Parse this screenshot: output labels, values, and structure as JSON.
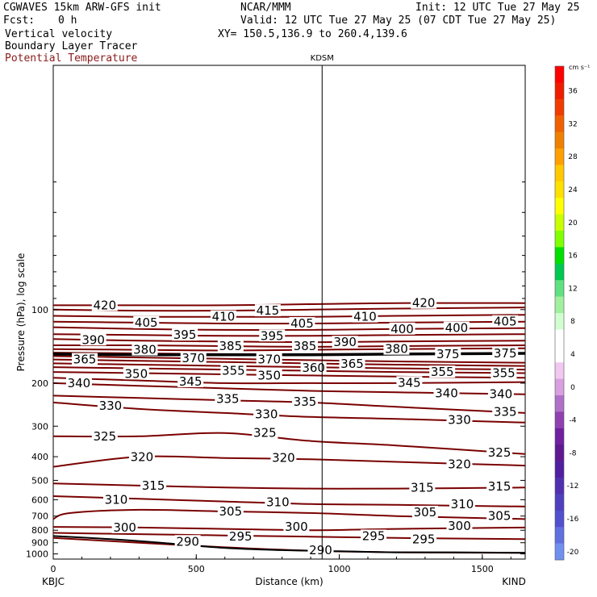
{
  "header": {
    "model": "CGWAVES 15km ARW-GFS init",
    "fcst_label": "Fcst:",
    "fcst_value": "0 h",
    "center": "NCAR/MMM",
    "init": "Init: 12 UTC Tue 27 May 25",
    "valid": "Valid: 12 UTC Tue 27 May 25 (07 CDT Tue 27 May 25)",
    "xy": "XY= 150.5,136.9 to 260.4,139.6",
    "field1": "Vertical velocity",
    "field2": "Boundary Layer Tracer",
    "field3": "Potential Temperature"
  },
  "colors": {
    "contour": "#7a0000",
    "field3_text": "#8b1a1a",
    "tropopause": "#000000"
  },
  "chart_data": {
    "type": "line",
    "xlabel": "Distance (km)",
    "ylabel": "Pressure (hPa), log scale",
    "xlim": [
      0,
      1650
    ],
    "ylim": [
      1050,
      10
    ],
    "x_ticks": [
      "0",
      "500",
      "1000",
      "1500"
    ],
    "y_ticks": [
      "100",
      "200",
      "300",
      "400",
      "500",
      "600",
      "700",
      "800",
      "900",
      "1000"
    ],
    "station_left": "KBJC",
    "station_right": "KIND",
    "station_mid": "KDSM",
    "station_mid_x": 940,
    "colorbar": {
      "unit": "cm s⁻¹",
      "labels": [
        "36",
        "32",
        "28",
        "24",
        "20",
        "16",
        "12",
        "8",
        "4",
        "0",
        "-4",
        "-8",
        "-12",
        "-16",
        "-20"
      ],
      "colors": [
        "#ff0000",
        "#f01c00",
        "#f03c00",
        "#f06000",
        "#f08000",
        "#ffa000",
        "#ffc800",
        "#ffe000",
        "#ffff00",
        "#c8ff00",
        "#80ff00",
        "#00e000",
        "#00c850",
        "#60e080",
        "#a0f0a0",
        "#d0ffd0",
        "#ffffff",
        "#ffffff",
        "#f0c8f0",
        "#d8a0e0",
        "#b070c8",
        "#9040b0",
        "#7020a0",
        "#601890",
        "#5020a0",
        "#5030b0",
        "#5040c0",
        "#5050d0",
        "#6070e0",
        "#7090f0"
      ]
    },
    "series": [
      {
        "theta": 290,
        "x": [
          0,
          300,
          600,
          900,
          1200,
          1650
        ],
        "p": [
          860,
          900,
          940,
          970,
          985,
          990
        ]
      },
      {
        "theta": 295,
        "x": [
          0,
          300,
          600,
          900,
          1200,
          1650
        ],
        "p": [
          820,
          830,
          840,
          850,
          860,
          870
        ]
      },
      {
        "theta": 300,
        "x": [
          0,
          300,
          600,
          900,
          1200,
          1650
        ],
        "p": [
          775,
          780,
          790,
          800,
          790,
          780
        ]
      },
      {
        "theta": 305,
        "x": [
          0,
          60,
          300,
          600,
          900,
          1200,
          1650
        ],
        "p": [
          720,
          680,
          660,
          670,
          680,
          700,
          720
        ]
      },
      {
        "theta": 310,
        "x": [
          0,
          300,
          600,
          900,
          1200,
          1650
        ],
        "p": [
          580,
          595,
          610,
          625,
          630,
          640
        ]
      },
      {
        "theta": 315,
        "x": [
          0,
          300,
          600,
          900,
          1200,
          1650
        ],
        "p": [
          515,
          525,
          535,
          540,
          540,
          535
        ]
      },
      {
        "theta": 320,
        "x": [
          0,
          300,
          600,
          900,
          1200,
          1650
        ],
        "p": [
          440,
          400,
          405,
          410,
          420,
          435
        ]
      },
      {
        "theta": 325,
        "x": [
          0,
          300,
          600,
          900,
          1200,
          1650
        ],
        "p": [
          330,
          330,
          320,
          345,
          360,
          390
        ]
      },
      {
        "theta": 330,
        "x": [
          0,
          300,
          600,
          900,
          1200,
          1650
        ],
        "p": [
          240,
          255,
          265,
          275,
          280,
          290
        ]
      },
      {
        "theta": 335,
        "x": [
          0,
          300,
          600,
          900,
          1200,
          1650
        ],
        "p": [
          225,
          230,
          235,
          240,
          250,
          265
        ]
      },
      {
        "theta": 340,
        "x": [
          0,
          300,
          600,
          900,
          1200,
          1650
        ],
        "p": [
          200,
          205,
          210,
          215,
          218,
          222
        ]
      },
      {
        "theta": 345,
        "x": [
          0,
          300,
          600,
          900,
          1200,
          1650
        ],
        "p": [
          190,
          195,
          200,
          200,
          200,
          198
        ]
      },
      {
        "theta": 350,
        "x": [
          0,
          300,
          600,
          900,
          1200,
          1650
        ],
        "p": [
          180,
          182,
          184,
          186,
          188,
          190
        ]
      },
      {
        "theta": 355,
        "x": [
          0,
          300,
          600,
          900,
          1200,
          1650
        ],
        "p": [
          172,
          174,
          176,
          178,
          180,
          182
        ]
      },
      {
        "theta": 360,
        "x": [
          0,
          300,
          600,
          900,
          1200,
          1650
        ],
        "p": [
          166,
          168,
          170,
          172,
          174,
          176
        ]
      },
      {
        "theta": 365,
        "x": [
          0,
          300,
          600,
          900,
          1200,
          1650
        ],
        "p": [
          160,
          162,
          164,
          166,
          168,
          170
        ]
      },
      {
        "theta": 370,
        "x": [
          0,
          300,
          600,
          900,
          1200,
          1650
        ],
        "p": [
          155,
          157,
          159,
          161,
          163,
          165
        ]
      },
      {
        "theta": 375,
        "x": [
          0,
          300,
          600,
          900,
          1200,
          1650
        ],
        "p": [
          150,
          151,
          152,
          152,
          152,
          151
        ]
      },
      {
        "theta": 380,
        "x": [
          0,
          300,
          600,
          900,
          1200,
          1650
        ],
        "p": [
          145,
          146,
          147,
          146,
          145,
          144
        ]
      },
      {
        "theta": 385,
        "x": [
          0,
          300,
          600,
          900,
          1200,
          1650
        ],
        "p": [
          140,
          140,
          141,
          142,
          141,
          140
        ]
      },
      {
        "theta": 390,
        "x": [
          0,
          300,
          600,
          900,
          1200,
          1650
        ],
        "p": [
          132,
          134,
          135,
          136,
          135,
          134
        ]
      },
      {
        "theta": 395,
        "x": [
          0,
          300,
          600,
          900,
          1200,
          1650
        ],
        "p": [
          126,
          127,
          128,
          128,
          127,
          126
        ]
      },
      {
        "theta": 400,
        "x": [
          0,
          300,
          600,
          900,
          1200,
          1650
        ],
        "p": [
          118,
          120,
          121,
          121,
          120,
          119
        ]
      },
      {
        "theta": 405,
        "x": [
          0,
          300,
          600,
          900,
          1200,
          1650
        ],
        "p": [
          112,
          113,
          114,
          114,
          113,
          112
        ]
      },
      {
        "theta": 410,
        "x": [
          0,
          300,
          600,
          900,
          1200,
          1650
        ],
        "p": [
          106,
          107,
          107,
          107,
          106,
          105
        ]
      },
      {
        "theta": 415,
        "x": [
          0,
          300,
          600,
          900,
          1200,
          1650
        ],
        "p": [
          100,
          101,
          101,
          100,
          99,
          98
        ]
      },
      {
        "theta": 420,
        "x": [
          0,
          300,
          600,
          900,
          1200,
          1650
        ],
        "p": [
          96,
          96,
          96,
          95,
          94,
          94
        ]
      }
    ],
    "labels": [
      {
        "text": "290",
        "x": 470,
        "p": 890
      },
      {
        "text": "290",
        "x": 935,
        "p": 965
      },
      {
        "text": "295",
        "x": 655,
        "p": 850
      },
      {
        "text": "295",
        "x": 1120,
        "p": 845
      },
      {
        "text": "295",
        "x": 1295,
        "p": 870
      },
      {
        "text": "300",
        "x": 250,
        "p": 780
      },
      {
        "text": "300",
        "x": 850,
        "p": 775
      },
      {
        "text": "300",
        "x": 1420,
        "p": 770
      },
      {
        "text": "305",
        "x": 620,
        "p": 670
      },
      {
        "text": "305",
        "x": 1300,
        "p": 675
      },
      {
        "text": "305",
        "x": 1560,
        "p": 700
      },
      {
        "text": "310",
        "x": 220,
        "p": 600
      },
      {
        "text": "310",
        "x": 785,
        "p": 615
      },
      {
        "text": "310",
        "x": 1430,
        "p": 625
      },
      {
        "text": "315",
        "x": 350,
        "p": 525
      },
      {
        "text": "315",
        "x": 1290,
        "p": 535
      },
      {
        "text": "315",
        "x": 1560,
        "p": 530
      },
      {
        "text": "320",
        "x": 310,
        "p": 402
      },
      {
        "text": "320",
        "x": 805,
        "p": 405
      },
      {
        "text": "320",
        "x": 1420,
        "p": 430
      },
      {
        "text": "325",
        "x": 180,
        "p": 330
      },
      {
        "text": "325",
        "x": 740,
        "p": 320
      },
      {
        "text": "325",
        "x": 1560,
        "p": 385
      },
      {
        "text": "330",
        "x": 200,
        "p": 248
      },
      {
        "text": "330",
        "x": 745,
        "p": 268
      },
      {
        "text": "330",
        "x": 1420,
        "p": 283
      },
      {
        "text": "335",
        "x": 610,
        "p": 232
      },
      {
        "text": "335",
        "x": 880,
        "p": 238
      },
      {
        "text": "335",
        "x": 1580,
        "p": 262
      },
      {
        "text": "340",
        "x": 90,
        "p": 200
      },
      {
        "text": "340",
        "x": 1375,
        "p": 220
      },
      {
        "text": "340",
        "x": 1565,
        "p": 222
      },
      {
        "text": "345",
        "x": 480,
        "p": 197
      },
      {
        "text": "345",
        "x": 1245,
        "p": 199
      },
      {
        "text": "350",
        "x": 290,
        "p": 183
      },
      {
        "text": "350",
        "x": 755,
        "p": 186
      },
      {
        "text": "355",
        "x": 630,
        "p": 178
      },
      {
        "text": "355",
        "x": 1360,
        "p": 180
      },
      {
        "text": "355",
        "x": 1575,
        "p": 182
      },
      {
        "text": "360",
        "x": 910,
        "p": 173
      },
      {
        "text": "365",
        "x": 110,
        "p": 160
      },
      {
        "text": "365",
        "x": 1045,
        "p": 167
      },
      {
        "text": "370",
        "x": 490,
        "p": 158
      },
      {
        "text": "370",
        "x": 755,
        "p": 160
      },
      {
        "text": "375",
        "x": 1380,
        "p": 152
      },
      {
        "text": "375",
        "x": 1580,
        "p": 151
      },
      {
        "text": "380",
        "x": 320,
        "p": 146
      },
      {
        "text": "380",
        "x": 1200,
        "p": 145
      },
      {
        "text": "385",
        "x": 620,
        "p": 141
      },
      {
        "text": "385",
        "x": 880,
        "p": 141
      },
      {
        "text": "390",
        "x": 140,
        "p": 133
      },
      {
        "text": "390",
        "x": 1020,
        "p": 136
      },
      {
        "text": "395",
        "x": 460,
        "p": 127
      },
      {
        "text": "395",
        "x": 765,
        "p": 128
      },
      {
        "text": "400",
        "x": 1220,
        "p": 120
      },
      {
        "text": "400",
        "x": 1410,
        "p": 119
      },
      {
        "text": "405",
        "x": 325,
        "p": 113
      },
      {
        "text": "405",
        "x": 870,
        "p": 114
      },
      {
        "text": "405",
        "x": 1580,
        "p": 112
      },
      {
        "text": "410",
        "x": 595,
        "p": 107
      },
      {
        "text": "410",
        "x": 1090,
        "p": 107
      },
      {
        "text": "415",
        "x": 750,
        "p": 101
      },
      {
        "text": "420",
        "x": 180,
        "p": 96
      },
      {
        "text": "420",
        "x": 1295,
        "p": 94
      }
    ],
    "tropopause": {
      "x": [
        0,
        300,
        600,
        900,
        1200,
        1650
      ],
      "p": [
        152,
        153,
        153,
        153,
        152,
        151
      ]
    },
    "terrain": {
      "x": [
        0,
        200,
        400,
        600,
        800,
        1000,
        1200,
        1400,
        1650
      ],
      "p": [
        845,
        870,
        905,
        945,
        965,
        975,
        985,
        985,
        990
      ]
    }
  }
}
